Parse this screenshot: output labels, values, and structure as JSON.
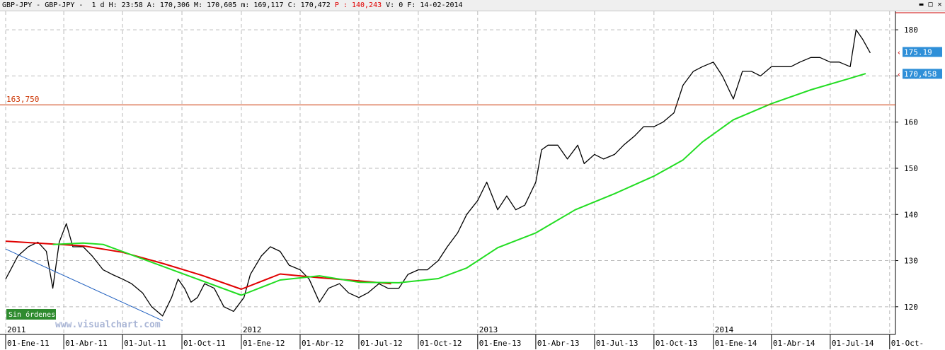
{
  "header": {
    "symbol": "GBP-JPY",
    "name": "GBP-JPY",
    "period": "1 d",
    "h_label": "H:",
    "h_value": "23:58",
    "a_label": "A:",
    "a_value": "170,306",
    "m_label": "M:",
    "m_value": "170,605",
    "mm_label": "m:",
    "mm_value": "169,117",
    "c_label": "C:",
    "c_value": "170,472",
    "p_label": "P",
    "p_value": "140,243",
    "v_label": "V:",
    "v_value": "0",
    "f_label": "F:",
    "f_value": "14-02-2014"
  },
  "window_buttons": [
    {
      "icon": "minimize-icon",
      "glyph": "▬"
    },
    {
      "icon": "maximize-icon",
      "glyph": "□"
    },
    {
      "icon": "close-icon",
      "glyph": "✕"
    }
  ],
  "badge": {
    "text": "Sin órdenes",
    "color": "#2e8b2e"
  },
  "watermark": "www.visualchart.com",
  "colors": {
    "price": "#000000",
    "ma_red": "#e00000",
    "ma_green": "#22dd22",
    "hline": "#cc3300",
    "trendline": "#1f5fbf",
    "grid": "#bbbbbb",
    "axis_badge": "#2e8fd8"
  },
  "chart_data": {
    "type": "line",
    "style": "candlestick-like daily bars rendered as a line",
    "y_ticks": [
      "120",
      "130",
      "140",
      "150",
      "160",
      "170",
      "180"
    ],
    "ylim": [
      114,
      184
    ],
    "x_range": [
      "2011-01-01",
      "2014-10-10"
    ],
    "grid": true,
    "x_ticks": [
      {
        "date": "2011-01-01",
        "label": "01-Ene-11"
      },
      {
        "date": "2011-04-01",
        "label": "01-Abr-11"
      },
      {
        "date": "2011-07-01",
        "label": "01-Jul-11"
      },
      {
        "date": "2011-10-01",
        "label": "01-Oct-11"
      },
      {
        "date": "2012-01-01",
        "label": "01-Ene-12"
      },
      {
        "date": "2012-04-01",
        "label": "01-Abr-12"
      },
      {
        "date": "2012-07-01",
        "label": "01-Jul-12"
      },
      {
        "date": "2012-10-01",
        "label": "01-Oct-12"
      },
      {
        "date": "2013-01-01",
        "label": "01-Ene-13"
      },
      {
        "date": "2013-04-01",
        "label": "01-Abr-13"
      },
      {
        "date": "2013-07-01",
        "label": "01-Jul-13"
      },
      {
        "date": "2013-10-01",
        "label": "01-Oct-13"
      },
      {
        "date": "2014-01-01",
        "label": "01-Ene-14"
      },
      {
        "date": "2014-04-01",
        "label": "01-Abr-14"
      },
      {
        "date": "2014-07-01",
        "label": "01-Jul-14"
      },
      {
        "date": "2014-10-01",
        "label": "01-Oct-"
      }
    ],
    "year_markers": [
      {
        "date": "2011-01-01",
        "label": "2011"
      },
      {
        "date": "2012-01-01",
        "label": "2012"
      },
      {
        "date": "2013-01-01",
        "label": "2013"
      },
      {
        "date": "2014-01-01",
        "label": "2014"
      }
    ],
    "horizontal_line": {
      "value": 163.75,
      "label": "163,750"
    },
    "last_value_labels": [
      {
        "value": 175.19,
        "label": "175.19"
      },
      {
        "value": 170.458,
        "label": "170,458"
      }
    ],
    "series": [
      {
        "type": "price",
        "x": [
          "2011-01-01",
          "2011-01-20",
          "2011-02-05",
          "2011-02-20",
          "2011-03-05",
          "2011-03-15",
          "2011-03-25",
          "2011-04-05",
          "2011-04-15",
          "2011-05-01",
          "2011-05-15",
          "2011-06-01",
          "2011-06-15",
          "2011-07-01",
          "2011-07-15",
          "2011-08-01",
          "2011-08-15",
          "2011-09-01",
          "2011-09-15",
          "2011-09-25",
          "2011-10-05",
          "2011-10-15",
          "2011-10-25",
          "2011-11-05",
          "2011-11-20",
          "2011-12-05",
          "2011-12-20",
          "2012-01-05",
          "2012-01-15",
          "2012-02-01",
          "2012-02-15",
          "2012-03-01",
          "2012-03-15",
          "2012-04-01",
          "2012-04-15",
          "2012-05-01",
          "2012-05-15",
          "2012-06-01",
          "2012-06-15",
          "2012-07-01",
          "2012-07-15",
          "2012-08-01",
          "2012-08-15",
          "2012-09-01",
          "2012-09-15",
          "2012-10-01",
          "2012-10-15",
          "2012-11-01",
          "2012-11-15",
          "2012-12-01",
          "2012-12-15",
          "2013-01-01",
          "2013-01-15",
          "2013-02-01",
          "2013-02-15",
          "2013-03-01",
          "2013-03-15",
          "2013-04-01",
          "2013-04-10",
          "2013-04-20",
          "2013-05-05",
          "2013-05-20",
          "2013-06-05",
          "2013-06-15",
          "2013-07-01",
          "2013-07-15",
          "2013-08-01",
          "2013-08-15",
          "2013-09-01",
          "2013-09-15",
          "2013-10-01",
          "2013-10-15",
          "2013-11-01",
          "2013-11-15",
          "2013-12-01",
          "2013-12-15",
          "2014-01-01",
          "2014-01-15",
          "2014-02-01",
          "2014-02-15",
          "2014-03-01",
          "2014-03-15",
          "2014-04-01",
          "2014-04-15",
          "2014-05-01",
          "2014-05-15",
          "2014-06-01",
          "2014-06-15",
          "2014-07-01",
          "2014-07-15",
          "2014-08-01",
          "2014-08-10",
          "2014-08-20",
          "2014-09-01"
        ],
        "y": [
          126,
          131,
          133,
          134,
          132,
          124,
          134,
          138,
          133,
          133,
          131,
          128,
          127,
          126,
          125,
          123,
          120,
          118,
          122,
          126,
          124,
          121,
          122,
          125,
          124,
          120,
          119,
          122,
          127,
          131,
          133,
          132,
          129,
          128,
          126,
          121,
          124,
          125,
          123,
          122,
          123,
          125,
          124,
          124,
          127,
          128,
          128,
          130,
          133,
          136,
          140,
          143,
          147,
          141,
          144,
          141,
          142,
          147,
          154,
          155,
          155,
          152,
          155,
          151,
          153,
          152,
          153,
          155,
          157,
          159,
          159,
          160,
          162,
          168,
          171,
          172,
          173,
          170,
          165,
          171,
          171,
          170,
          172,
          172,
          172,
          173,
          174,
          174,
          173,
          173,
          172,
          180,
          178,
          175
        ]
      },
      {
        "type": "red_ma",
        "x": [
          "2011-01-01",
          "2011-03-01",
          "2011-05-01",
          "2011-07-01",
          "2011-09-01",
          "2011-11-01",
          "2012-01-01",
          "2012-03-01",
          "2012-05-01",
          "2012-07-01",
          "2012-08-20"
        ],
        "y": [
          134.2,
          133.7,
          133.2,
          131.8,
          129.4,
          126.8,
          123.8,
          127.1,
          126.3,
          125.6,
          125
        ]
      },
      {
        "type": "green_ma",
        "x": [
          "2011-03-15",
          "2011-05-01",
          "2011-06-01",
          "2012-01-01",
          "2012-03-01",
          "2012-05-01",
          "2012-07-01",
          "2012-09-01",
          "2012-11-01",
          "2012-12-15",
          "2013-02-01",
          "2013-04-01",
          "2013-06-01",
          "2013-08-01",
          "2013-10-01",
          "2013-11-15",
          "2013-12-15",
          "2014-02-01",
          "2014-04-01",
          "2014-06-01",
          "2014-08-01",
          "2014-08-25"
        ],
        "y": [
          133.5,
          133.8,
          133.5,
          122.5,
          125.8,
          126.7,
          125.3,
          125.2,
          126.1,
          128.4,
          132.8,
          136,
          141,
          144.5,
          148.3,
          151.8,
          155.7,
          160.5,
          164,
          167,
          169.5,
          170.5
        ]
      },
      {
        "type": "trendline",
        "x": [
          "2011-01-01",
          "2011-09-01"
        ],
        "y": [
          132.5,
          117
        ]
      }
    ]
  }
}
